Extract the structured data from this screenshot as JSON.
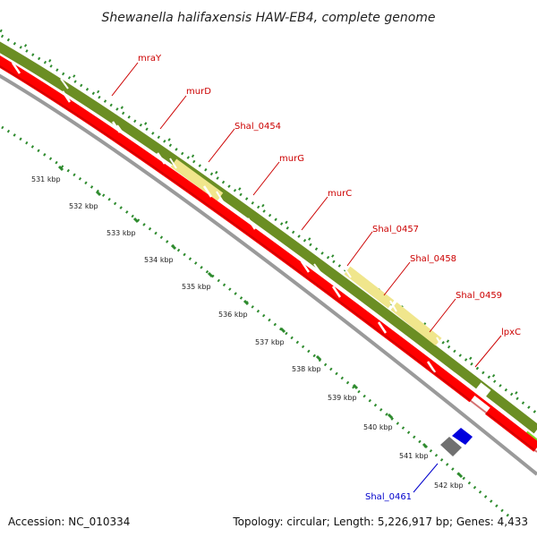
{
  "title": "Shewanella halifaxensis HAW-EB4, complete genome",
  "accession": "Accession: NC_010334",
  "topology": "Topology: circular; Length: 5,226,917 bp; Genes: 4,433",
  "colors": {
    "cds": "#ff0000",
    "cds_dark": "#b00000",
    "cog_olive": "#6b8e23",
    "cog_pale": "#f0e68c",
    "backbone": "#9a9a9a",
    "tick": "#2e8b2e",
    "label_red": "#cc0000",
    "label_blue": "#0000cc"
  },
  "kbp_ticks": [
    "531 kbp",
    "532 kbp",
    "533 kbp",
    "534 kbp",
    "535 kbp",
    "536 kbp",
    "537 kbp",
    "538 kbp",
    "539 kbp",
    "540 kbp",
    "541 kbp",
    "542 kbp"
  ],
  "genes": [
    {
      "name": "mraY",
      "color": "red"
    },
    {
      "name": "murD",
      "color": "red"
    },
    {
      "name": "Shal_0454",
      "color": "red"
    },
    {
      "name": "murG",
      "color": "red"
    },
    {
      "name": "murC",
      "color": "red"
    },
    {
      "name": "Shal_0457",
      "color": "red"
    },
    {
      "name": "Shal_0458",
      "color": "red"
    },
    {
      "name": "Shal_0459",
      "color": "red"
    },
    {
      "name": "lpxC",
      "color": "red"
    },
    {
      "name": "Shal_0461",
      "color": "blue"
    }
  ]
}
